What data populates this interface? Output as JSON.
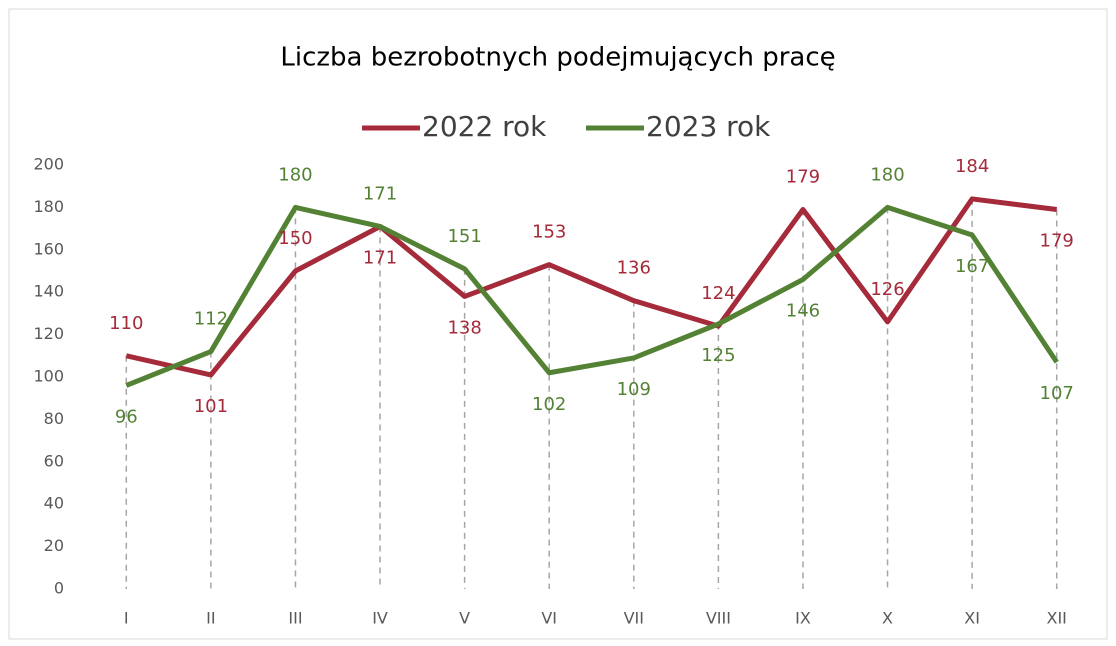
{
  "chart_data": {
    "type": "line",
    "title": "Liczba bezrobotnych podejmujących pracę",
    "categories": [
      "I",
      "II",
      "III",
      "IV",
      "V",
      "VI",
      "VII",
      "VIII",
      "IX",
      "X",
      "XI",
      "XII"
    ],
    "series": [
      {
        "name": "2022 rok",
        "color": "#a52a3a",
        "values": [
          110,
          101,
          150,
          171,
          138,
          153,
          136,
          124,
          179,
          126,
          184,
          179
        ]
      },
      {
        "name": "2023 rok",
        "color": "#548235",
        "values": [
          96,
          112,
          180,
          171,
          151,
          102,
          109,
          125,
          146,
          180,
          167,
          107
        ]
      }
    ],
    "ylim": [
      0,
      200
    ],
    "yticks": [
      0,
      20,
      40,
      60,
      80,
      100,
      120,
      140,
      160,
      180,
      200
    ],
    "grid": false,
    "legend": "top"
  }
}
